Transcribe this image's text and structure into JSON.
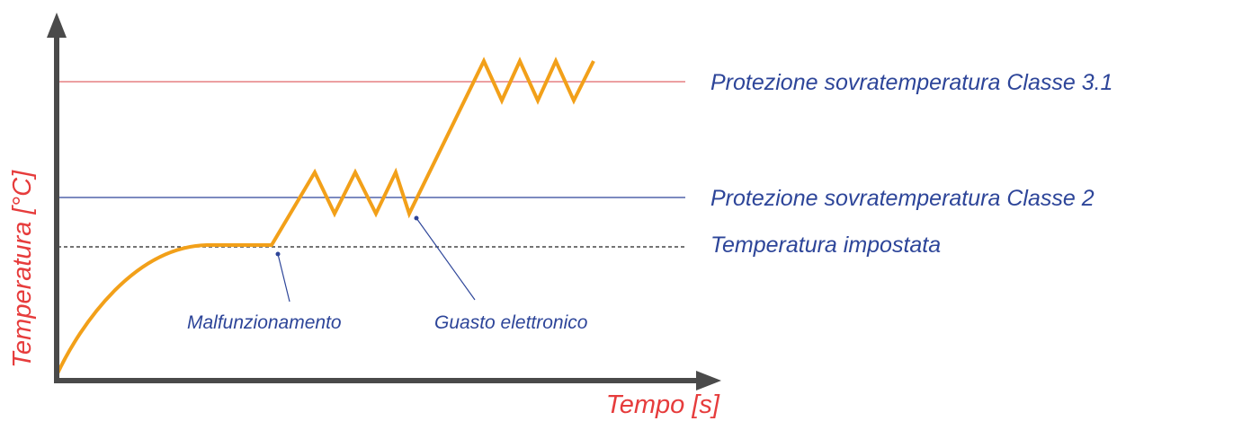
{
  "axes": {
    "x_label": "Tempo [s]",
    "y_label": "Temperatura [°C]",
    "axis_color": "#4a4a4a",
    "label_color": "#e63c3c"
  },
  "thresholds": [
    {
      "id": "class-3-1",
      "label": "Protezione sovratemperatura Classe 3.1",
      "line_color": "#e0686b",
      "text_color": "#2d4599",
      "style": "solid"
    },
    {
      "id": "class-2",
      "label": "Protezione sovratemperatura Classe 2",
      "line_color": "#2d4599",
      "text_color": "#2d4599",
      "style": "solid"
    },
    {
      "id": "setpoint",
      "label": "Temperatura impostata",
      "line_color": "#222222",
      "text_color": "#2d4599",
      "style": "dashed"
    }
  ],
  "events": [
    {
      "id": "malfunction",
      "label": "Malfunzionamento",
      "color": "#2d4599"
    },
    {
      "id": "electronic-fault",
      "label": "Guasto elettronico",
      "color": "#2d4599"
    }
  ],
  "curve": {
    "color": "#f2a019"
  }
}
